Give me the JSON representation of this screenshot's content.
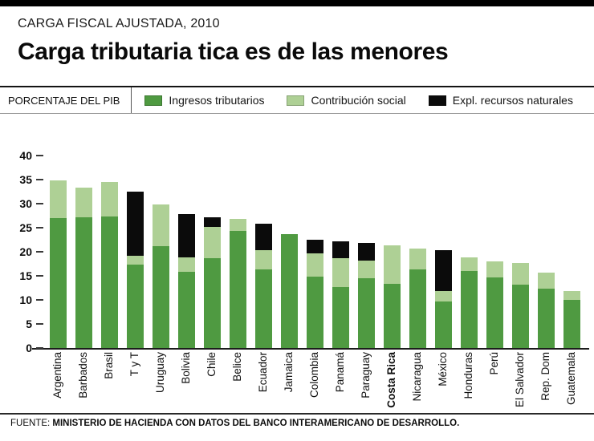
{
  "header": {
    "kicker": "CARGA FISCAL AJUSTADA, 2010",
    "title": "Carga tributaria tica es de las menores"
  },
  "legend": {
    "axis_unit_label": "PORCENTAJE DEL PIB",
    "items": [
      {
        "label": "Ingresos tributarios",
        "color": "#4f9a41"
      },
      {
        "label": "Contribución social",
        "color": "#aed095"
      },
      {
        "label": "Expl. recursos naturales",
        "color": "#0b0b0b"
      }
    ]
  },
  "chart_data": {
    "type": "bar",
    "stacked": true,
    "title": "Carga tributaria tica es de las menores",
    "subtitle": "CARGA FISCAL AJUSTADA, 2010",
    "ylabel": "PORCENTAJE DEL PIB",
    "xlabel": "",
    "ylim": [
      0,
      40
    ],
    "yticks": [
      0,
      5,
      10,
      15,
      20,
      25,
      30,
      35,
      40
    ],
    "grid": false,
    "legend_position": "top",
    "highlight_category": "Costa Rica",
    "categories": [
      "Argentina",
      "Barbados",
      "Brasil",
      "T y T",
      "Uruguay",
      "Bolivia",
      "Chile",
      "Belice",
      "Ecuador",
      "Jamaica",
      "Colombia",
      "Panamá",
      "Paraguay",
      "Costa Rica",
      "Nicaragua",
      "México",
      "Honduras",
      "Perú",
      "El Salvador",
      "Rep. Dom",
      "Guatemala"
    ],
    "series": [
      {
        "name": "Ingresos tributarios",
        "color": "#4f9a41",
        "values": [
          27.0,
          27.2,
          27.3,
          17.3,
          21.2,
          15.9,
          18.6,
          24.4,
          16.3,
          23.7,
          14.8,
          12.6,
          14.5,
          13.4,
          16.4,
          9.6,
          16.0,
          14.7,
          13.2,
          12.4,
          10.0
        ]
      },
      {
        "name": "Contribución social",
        "color": "#aed095",
        "values": [
          7.9,
          6.1,
          7.2,
          1.9,
          8.6,
          3.0,
          6.6,
          2.4,
          4.1,
          0,
          4.9,
          6.1,
          3.7,
          8.0,
          4.3,
          2.3,
          2.9,
          3.3,
          4.5,
          3.2,
          1.9
        ]
      },
      {
        "name": "Expl. recursos naturales",
        "color": "#0b0b0b",
        "values": [
          0,
          0,
          0,
          13.3,
          0,
          9.0,
          2.0,
          0,
          5.4,
          0,
          2.8,
          3.4,
          3.7,
          0,
          0,
          8.5,
          0,
          0,
          0,
          0,
          0
        ]
      }
    ]
  },
  "footer": {
    "source_prefix": "FUENTE:",
    "source_text": "MINISTERIO DE HACIENDA CON DATOS DEL BANCO INTERAMERICANO DE DESARROLLO."
  }
}
